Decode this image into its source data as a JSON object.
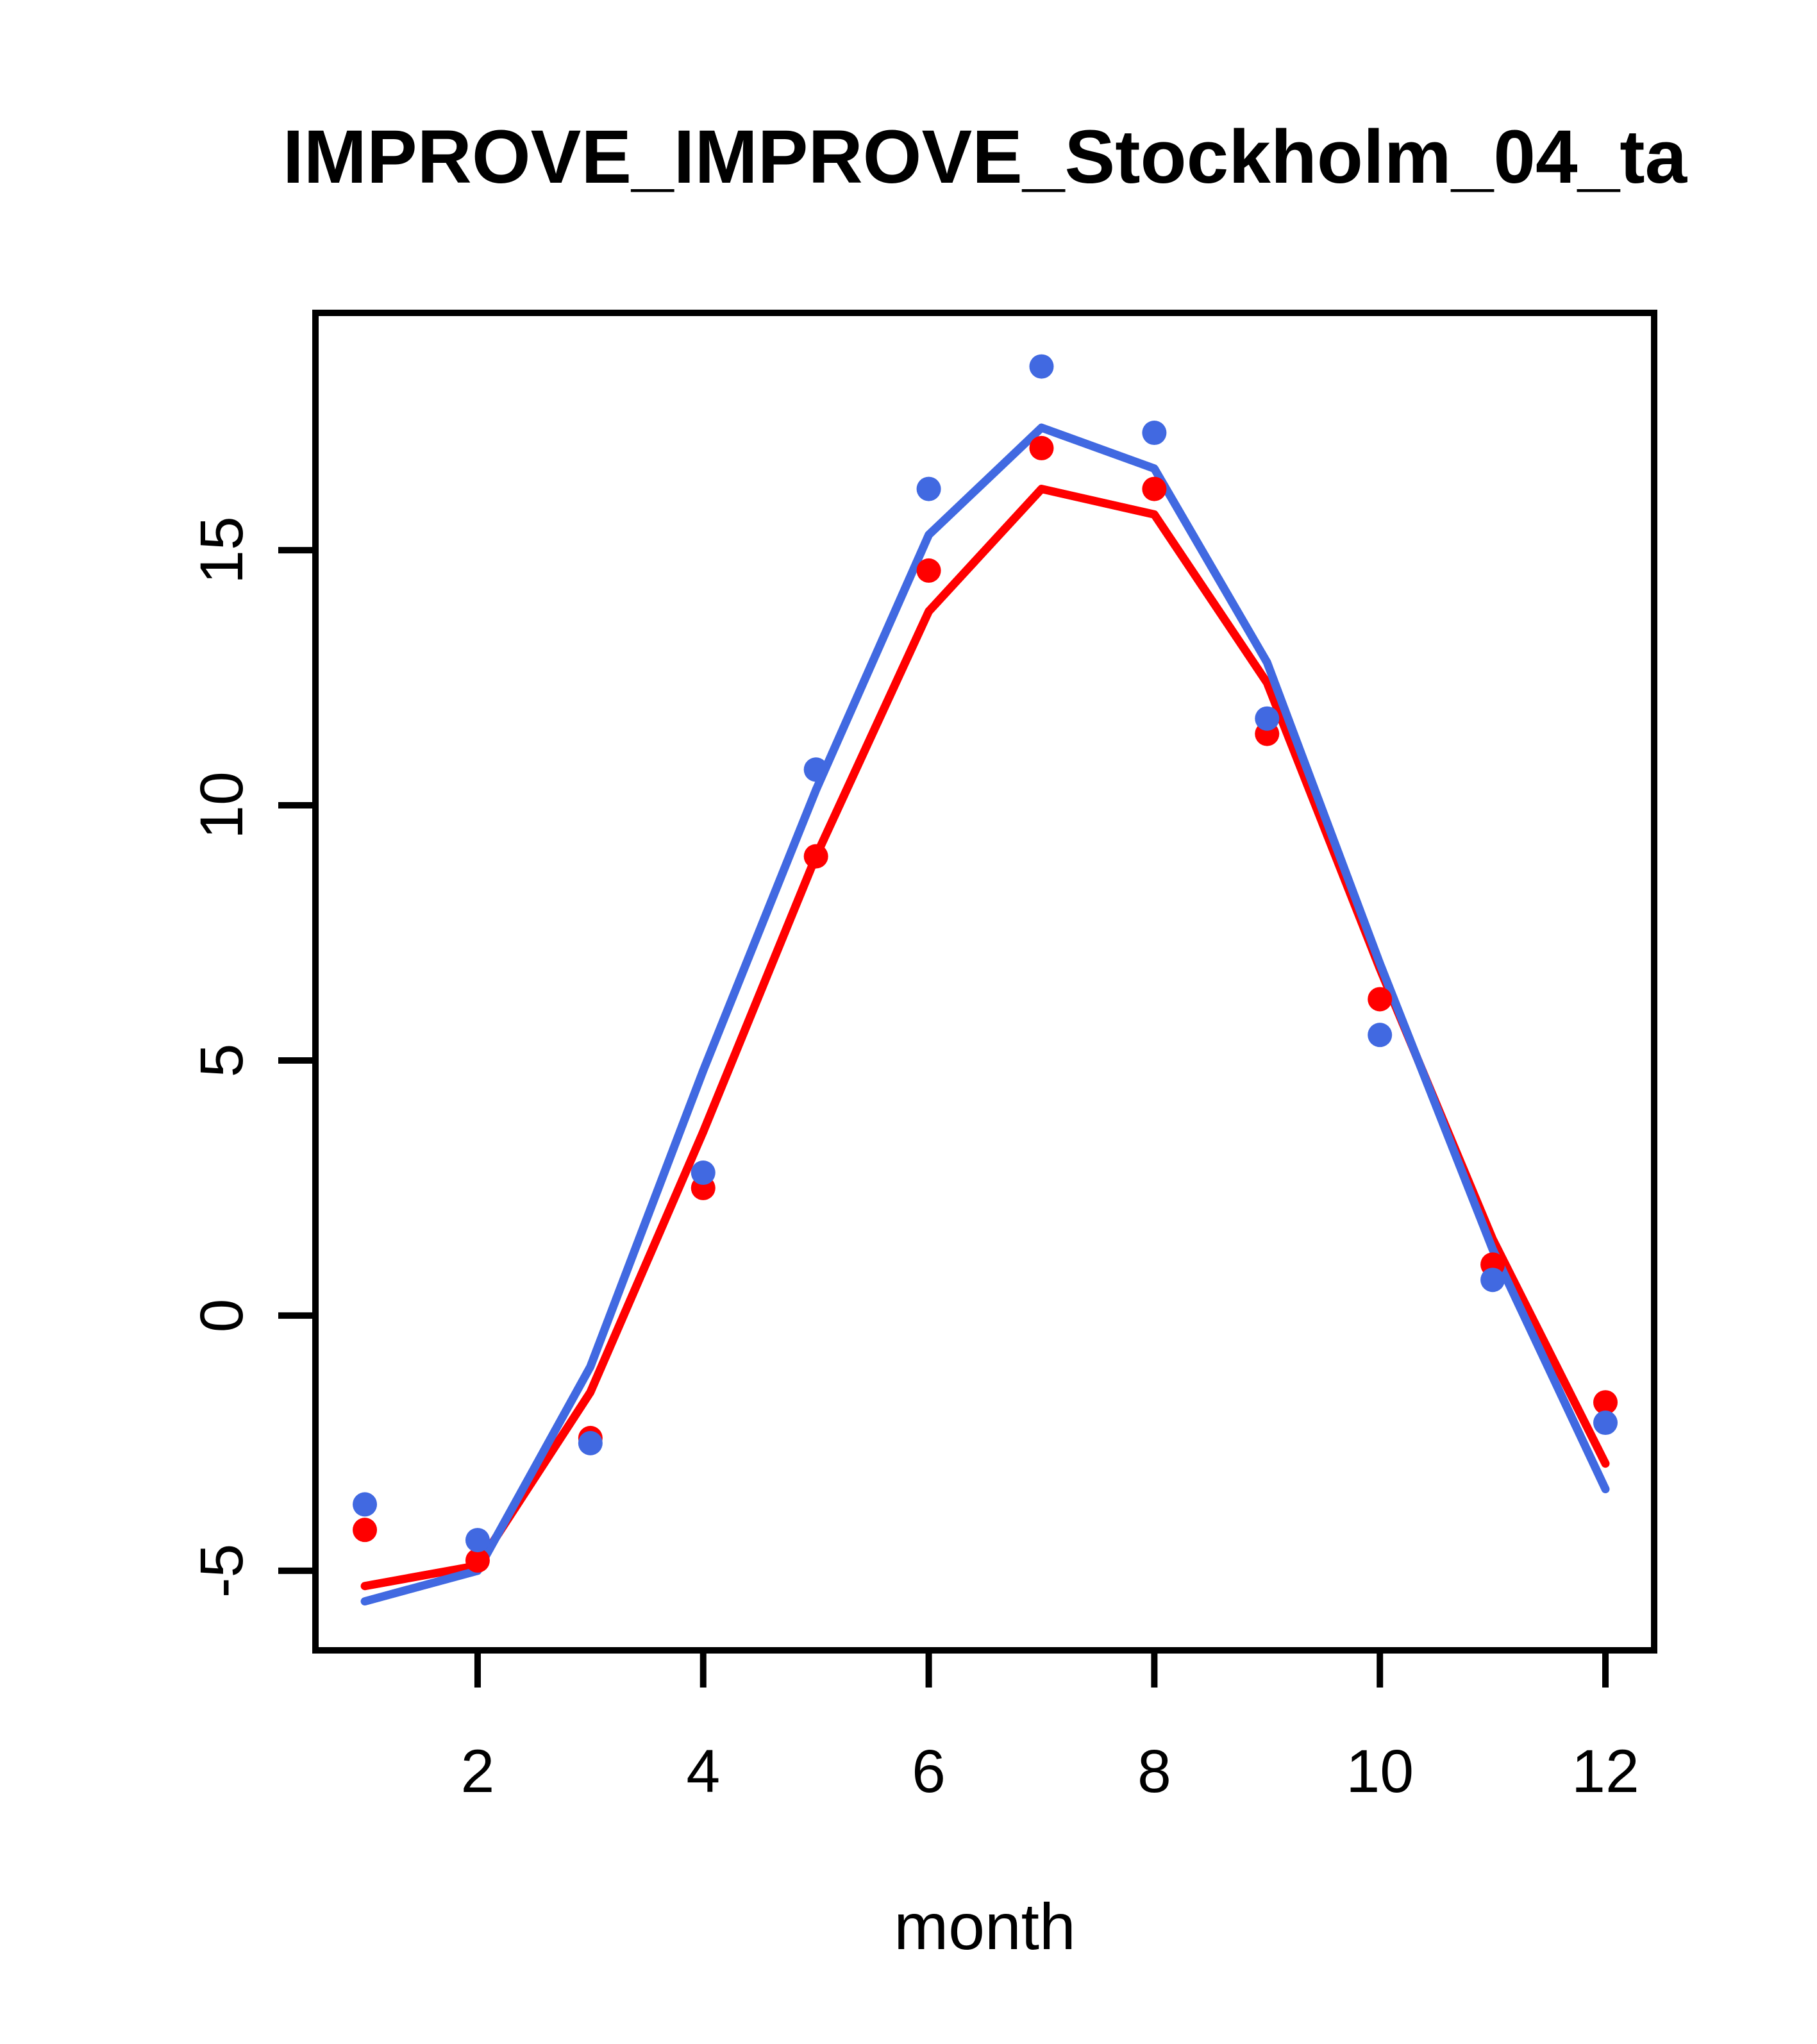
{
  "chart_data": {
    "type": "line",
    "title": "IMPROVE_IMPROVE_Stockholm_04_ta",
    "xlabel": "month",
    "ylabel": "",
    "x": [
      1,
      2,
      3,
      4,
      5,
      6,
      7,
      8,
      9,
      10,
      11,
      12
    ],
    "xticks": [
      2,
      4,
      6,
      8,
      10,
      12
    ],
    "yticks": [
      -5,
      0,
      5,
      10,
      15
    ],
    "xlim": [
      0.562,
      12.432
    ],
    "ylim": [
      -6.56,
      19.65
    ],
    "grid": false,
    "legend_position": "none",
    "colors": {
      "blue": "#4169E1",
      "red": "#FF0000",
      "axis": "#000000",
      "background": "#FFFFFF"
    },
    "series": [
      {
        "name": "red-line",
        "style": "line",
        "color": "red",
        "values": [
          -5.3,
          -4.9,
          -1.5,
          3.6,
          9.0,
          13.8,
          16.2,
          15.7,
          12.4,
          6.8,
          1.5,
          -2.9
        ]
      },
      {
        "name": "blue-line",
        "style": "line",
        "color": "blue",
        "values": [
          -5.6,
          -5.0,
          -1.0,
          4.8,
          10.3,
          15.3,
          17.4,
          16.6,
          12.8,
          6.9,
          1.3,
          -3.4
        ]
      },
      {
        "name": "red-points",
        "style": "points",
        "color": "red",
        "values": [
          -4.2,
          -4.8,
          -2.4,
          2.5,
          9.0,
          14.6,
          17.0,
          16.2,
          11.4,
          6.2,
          1.0,
          -1.7
        ]
      },
      {
        "name": "blue-points",
        "style": "points",
        "color": "blue",
        "values": [
          -3.7,
          -4.4,
          -2.5,
          2.8,
          10.7,
          16.2,
          18.6,
          17.3,
          11.7,
          5.5,
          0.7,
          -2.1
        ]
      }
    ]
  }
}
